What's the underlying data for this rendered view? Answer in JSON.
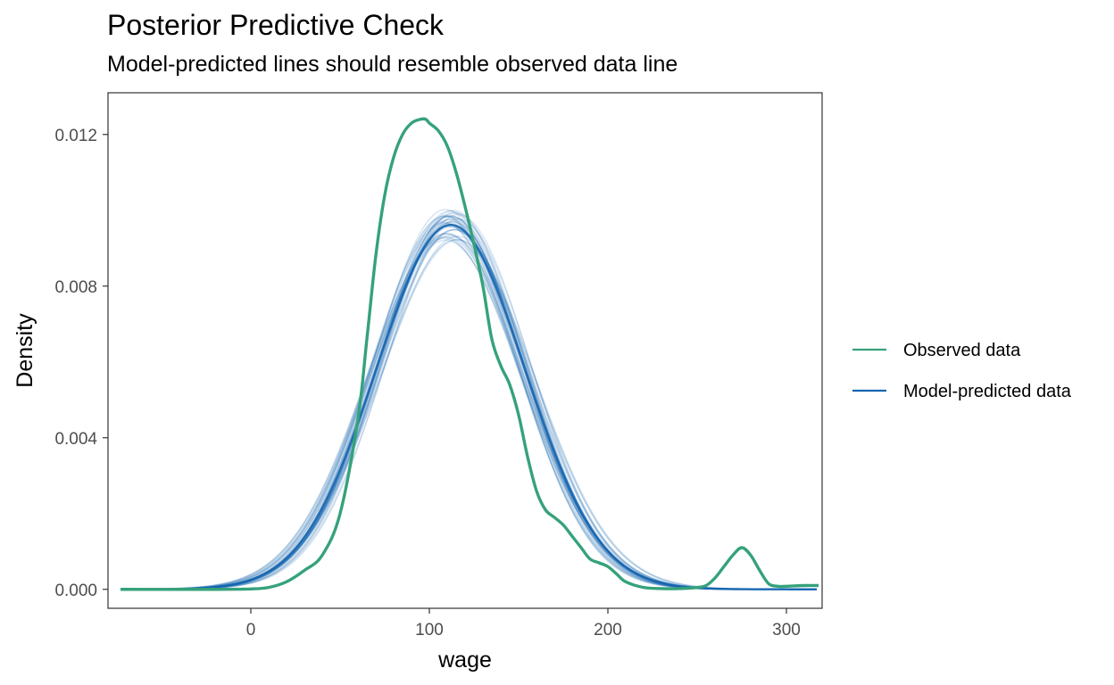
{
  "chart_data": {
    "type": "line",
    "title": "Posterior Predictive Check",
    "subtitle": "Model-predicted lines should resemble observed data line",
    "xlabel": "wage",
    "ylabel": "Density",
    "xlim": [
      -80,
      320
    ],
    "ylim": [
      -0.0005,
      0.0131
    ],
    "x_ticks": [
      0,
      100,
      200,
      300
    ],
    "x_tick_labels": [
      "0",
      "100",
      "200",
      "300"
    ],
    "y_ticks": [
      0,
      0.004,
      0.008,
      0.012
    ],
    "y_tick_labels": [
      "0.000",
      "0.004",
      "0.008",
      "0.012"
    ],
    "grid": false,
    "legend_position": "right",
    "legend": [
      {
        "label": "Observed data",
        "color": "#35a27a"
      },
      {
        "label": "Model-predicted data",
        "color": "#1565b0"
      }
    ],
    "series": [
      {
        "name": "Observed data",
        "color": "#35a27a",
        "x": [
          -73,
          -20,
          0,
          10,
          20,
          30,
          40,
          50,
          60,
          65,
          70,
          75,
          80,
          85,
          90,
          95,
          98,
          100,
          105,
          110,
          115,
          120,
          125,
          130,
          135,
          140,
          145,
          150,
          155,
          160,
          165,
          170,
          175,
          180,
          185,
          190,
          195,
          200,
          205,
          210,
          220,
          230,
          240,
          250,
          255,
          260,
          265,
          270,
          275,
          280,
          285,
          290,
          295,
          300,
          310,
          318
        ],
        "y": [
          0,
          0,
          1e-05,
          5e-05,
          0.0002,
          0.0005,
          0.0009,
          0.002,
          0.0045,
          0.0066,
          0.0088,
          0.0104,
          0.0114,
          0.012,
          0.0123,
          0.0124,
          0.0124,
          0.0123,
          0.0121,
          0.0117,
          0.011,
          0.0101,
          0.0091,
          0.008,
          0.0066,
          0.0059,
          0.0054,
          0.0046,
          0.0035,
          0.0026,
          0.0021,
          0.0019,
          0.0017,
          0.0014,
          0.0011,
          0.0008,
          0.0007,
          0.0006,
          0.0004,
          0.0002,
          5e-05,
          2e-05,
          2e-05,
          5e-05,
          0.0001,
          0.0003,
          0.0006,
          0.0009,
          0.0011,
          0.0009,
          0.0005,
          0.00015,
          8e-05,
          8e-05,
          0.0001,
          0.0001
        ]
      },
      {
        "name": "Model-predicted data",
        "color": "#1565b0",
        "mean": 112,
        "sd": 41.5,
        "draws": 40
      }
    ]
  }
}
